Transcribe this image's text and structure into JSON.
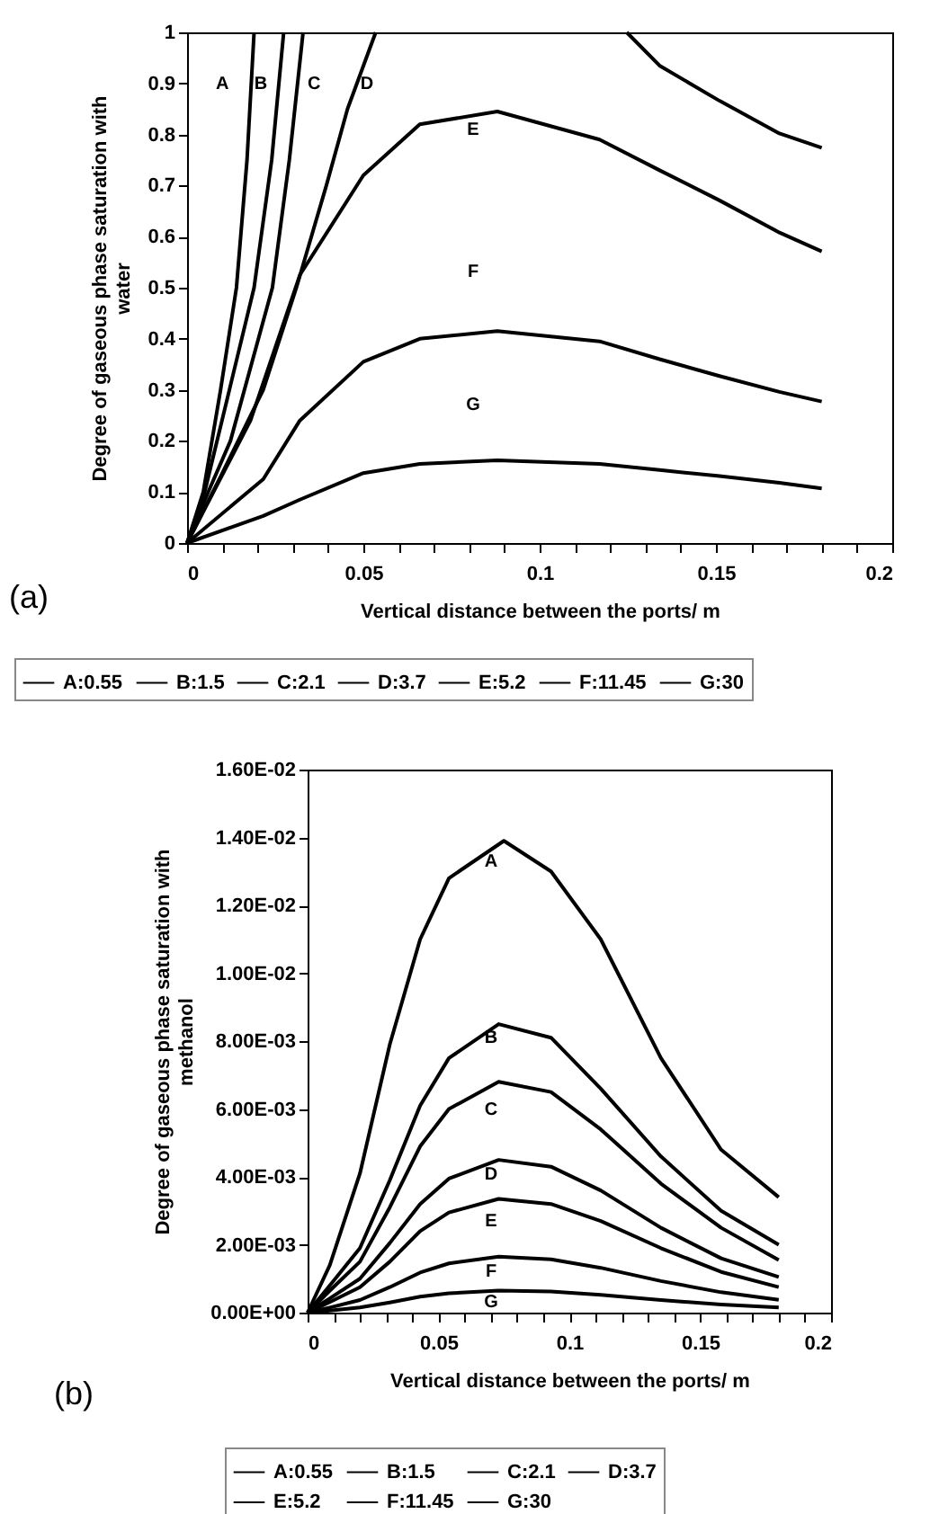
{
  "chart_data": [
    {
      "type": "line",
      "xlabel": "Vertical distance between the ports/ m",
      "ylabel": "Degree of gaseous phase saturation with water",
      "legend": "bottom",
      "xlim": [
        0,
        0.2
      ],
      "ylim": [
        0,
        1
      ],
      "xticks": [
        0,
        {
          "value": 0.01,
          "label": null
        },
        {
          "value": 0.02,
          "label": null
        },
        {
          "value": 0.03,
          "label": null
        },
        {
          "value": 0.04,
          "label": null
        },
        0.05,
        {
          "value": 0.06,
          "label": null
        },
        {
          "value": 0.07,
          "label": null
        },
        {
          "value": 0.08,
          "label": null
        },
        {
          "value": 0.09,
          "label": null
        },
        0.1,
        {
          "value": 0.11,
          "label": null
        },
        {
          "value": 0.12,
          "label": null
        },
        {
          "value": 0.13,
          "label": null
        },
        {
          "value": 0.14,
          "label": null
        },
        0.15,
        {
          "value": 0.16,
          "label": null
        },
        {
          "value": 0.17,
          "label": null
        },
        {
          "value": 0.18,
          "label": null
        },
        {
          "value": 0.19,
          "label": null
        },
        0.2
      ],
      "yticks": [
        0,
        0.1,
        0.2,
        0.3,
        0.4,
        0.5,
        0.6,
        0.7,
        0.8,
        0.9,
        1
      ],
      "series": [
        {
          "name": "A:0.55",
          "color": "#000000",
          "x": [
            0,
            0.0046,
            0.0095,
            0.014,
            0.017,
            0.019
          ],
          "values": [
            0,
            0.1,
            0.3,
            0.5,
            0.75,
            1
          ]
        },
        {
          "name": "B:1.5",
          "color": "#000000",
          "x": [
            0,
            0.005,
            0.012,
            0.019,
            0.024,
            0.0274
          ],
          "values": [
            0,
            0.1,
            0.3,
            0.5,
            0.75,
            1
          ]
        },
        {
          "name": "C:2.1",
          "color": "#000000",
          "x": [
            0,
            0.006,
            0.0123,
            0.0242,
            0.029,
            0.0329
          ],
          "values": [
            0,
            0.1,
            0.2,
            0.5,
            0.75,
            1
          ]
        },
        {
          "name": "D:3.7",
          "color": "#000000",
          "x": [
            0,
            0.0095,
            0.0216,
            0.031,
            0.0395,
            0.0455,
            0.0535,
            0.09,
            0.1247,
            0.134,
            0.151,
            0.168,
            0.18
          ],
          "values": [
            0,
            0.13,
            0.3,
            0.5,
            0.7,
            0.85,
            1,
            null,
            1,
            0.935,
            0.866,
            0.802,
            0.774
          ]
        },
        {
          "name": "E:5.2",
          "color": "#000000",
          "x": [
            0,
            0.018,
            0.032,
            0.05,
            0.066,
            0.088,
            0.117,
            0.134,
            0.151,
            0.168,
            0.18
          ],
          "values": [
            0,
            0.24,
            0.525,
            0.72,
            0.82,
            0.845,
            0.79,
            0.73,
            0.671,
            0.608,
            0.571
          ]
        },
        {
          "name": "F:11.45",
          "color": "#000000",
          "x": [
            0,
            0.0216,
            0.032,
            0.05,
            0.066,
            0.088,
            0.117,
            0.134,
            0.151,
            0.168,
            0.18
          ],
          "values": [
            0,
            0.125,
            0.24,
            0.355,
            0.4,
            0.415,
            0.395,
            0.36,
            0.327,
            0.296,
            0.277
          ]
        },
        {
          "name": "G:30",
          "color": "#000000",
          "x": [
            0,
            0.0216,
            0.032,
            0.05,
            0.066,
            0.088,
            0.117,
            0.134,
            0.151,
            0.168,
            0.18
          ],
          "values": [
            0,
            0.053,
            0.085,
            0.137,
            0.155,
            0.162,
            0.155,
            0.143,
            0.131,
            0.118,
            0.107
          ]
        }
      ],
      "annotations": [
        "(a)",
        "A",
        "B",
        "C",
        "D",
        "E",
        "F",
        "G"
      ]
    },
    {
      "type": "line",
      "xlabel": "Vertical distance between the ports/ m",
      "ylabel": "Degree of gaseous phase saturation with methanol",
      "legend": "bottom",
      "xlim": [
        0,
        0.2
      ],
      "ylim": [
        0,
        0.016
      ],
      "xticks": [
        0,
        {
          "value": 0.01,
          "label": null
        },
        {
          "value": 0.02,
          "label": null
        },
        {
          "value": 0.03,
          "label": null
        },
        {
          "value": 0.04,
          "label": null
        },
        0.05,
        {
          "value": 0.06,
          "label": null
        },
        {
          "value": 0.07,
          "label": null
        },
        {
          "value": 0.08,
          "label": null
        },
        {
          "value": 0.09,
          "label": null
        },
        0.1,
        {
          "value": 0.11,
          "label": null
        },
        {
          "value": 0.12,
          "label": null
        },
        {
          "value": 0.13,
          "label": null
        },
        {
          "value": 0.14,
          "label": null
        },
        0.15,
        {
          "value": 0.16,
          "label": null
        },
        {
          "value": 0.17,
          "label": null
        },
        {
          "value": 0.18,
          "label": null
        },
        {
          "value": 0.19,
          "label": null
        },
        0.2
      ],
      "yticks": [
        {
          "value": 0,
          "label": "0.00E+00"
        },
        {
          "value": 0.002,
          "label": "2.00E-03"
        },
        {
          "value": 0.004,
          "label": "4.00E-03"
        },
        {
          "value": 0.006,
          "label": "6.00E-03"
        },
        {
          "value": 0.008,
          "label": "8.00E-03"
        },
        {
          "value": 0.01,
          "label": "1.00E-02"
        },
        {
          "value": 0.012,
          "label": "1.20E-02"
        },
        {
          "value": 0.014,
          "label": "1.40E-02"
        },
        {
          "value": 0.016,
          "label": "1.60E-02"
        }
      ],
      "series": [
        {
          "name": "A:0.55",
          "color": "#000000",
          "x": [
            0,
            0.0085,
            0.02,
            0.0314,
            0.043,
            0.054,
            0.075,
            0.093,
            0.112,
            0.135,
            0.158,
            0.18
          ],
          "values": [
            0,
            0.0014,
            0.0041,
            0.0079,
            0.011,
            0.0128,
            0.0139,
            0.013,
            0.011,
            0.0075,
            0.0048,
            0.0034
          ]
        },
        {
          "name": "B:1.5",
          "color": "#000000",
          "x": [
            0,
            0.0085,
            0.02,
            0.0314,
            0.043,
            0.054,
            0.073,
            0.093,
            0.112,
            0.135,
            0.158,
            0.18
          ],
          "values": [
            0,
            0.0008,
            0.0019,
            0.0039,
            0.0061,
            0.0075,
            0.0085,
            0.0081,
            0.0066,
            0.0046,
            0.003,
            0.002
          ]
        },
        {
          "name": "C:2.1",
          "color": "#000000",
          "x": [
            0,
            0.0085,
            0.02,
            0.0314,
            0.043,
            0.054,
            0.073,
            0.093,
            0.112,
            0.135,
            0.158,
            0.18
          ],
          "values": [
            0,
            0.00065,
            0.0015,
            0.0031,
            0.0049,
            0.006,
            0.0068,
            0.0065,
            0.0054,
            0.0038,
            0.0025,
            0.00155
          ]
        },
        {
          "name": "D:3.7",
          "color": "#000000",
          "x": [
            0,
            0.0085,
            0.02,
            0.0314,
            0.043,
            0.054,
            0.073,
            0.093,
            0.112,
            0.135,
            0.158,
            0.18
          ],
          "values": [
            0,
            0.00042,
            0.001,
            0.00205,
            0.0032,
            0.00395,
            0.0045,
            0.0043,
            0.0036,
            0.0025,
            0.0016,
            0.00105
          ]
        },
        {
          "name": "E:5.2",
          "color": "#000000",
          "x": [
            0,
            0.0085,
            0.02,
            0.0314,
            0.043,
            0.054,
            0.073,
            0.093,
            0.112,
            0.135,
            0.158,
            0.18
          ],
          "values": [
            0,
            0.00031,
            0.00075,
            0.0015,
            0.0024,
            0.00295,
            0.00335,
            0.0032,
            0.0027,
            0.0019,
            0.0012,
            0.00075
          ]
        },
        {
          "name": "F:11.45",
          "color": "#000000",
          "x": [
            0,
            0.0085,
            0.02,
            0.0314,
            0.043,
            0.054,
            0.073,
            0.093,
            0.112,
            0.135,
            0.158,
            0.18
          ],
          "values": [
            0,
            0.00015,
            0.00037,
            0.00075,
            0.00118,
            0.00145,
            0.00165,
            0.00157,
            0.00132,
            0.00093,
            0.0006,
            0.00038
          ]
        },
        {
          "name": "G:30",
          "color": "#000000",
          "x": [
            0,
            0.0085,
            0.02,
            0.0314,
            0.043,
            0.054,
            0.073,
            0.093,
            0.112,
            0.135,
            0.158,
            0.18
          ],
          "values": [
            0,
            6e-05,
            0.00015,
            0.0003,
            0.00047,
            0.00057,
            0.00065,
            0.00062,
            0.00052,
            0.00037,
            0.00024,
            0.00015
          ]
        }
      ],
      "annotations": [
        "(b)",
        "A",
        "B",
        "C",
        "D",
        "E",
        "F",
        "G"
      ]
    }
  ]
}
